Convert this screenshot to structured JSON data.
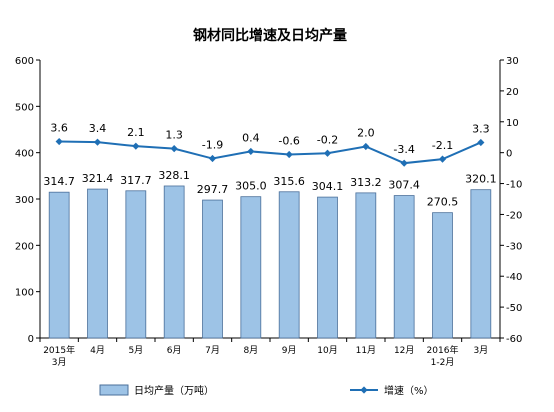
{
  "chart_data": {
    "type": "bar",
    "title": "钢材同比增速及日均产量",
    "categories": [
      [
        "2015年",
        "3月"
      ],
      [
        "4月"
      ],
      [
        "5月"
      ],
      [
        "6月"
      ],
      [
        "7月"
      ],
      [
        "8月"
      ],
      [
        "9月"
      ],
      [
        "10月"
      ],
      [
        "11月"
      ],
      [
        "12月"
      ],
      [
        "2016年",
        "1-2月"
      ],
      [
        "3月"
      ]
    ],
    "y_left": {
      "min": 0,
      "max": 600,
      "step": 100
    },
    "y_right": {
      "min": -60,
      "max": 30,
      "step": 10
    },
    "series": [
      {
        "name": "日均产量（万吨）",
        "type": "bar",
        "axis": "left",
        "values": [
          314.7,
          321.4,
          317.7,
          328.1,
          297.7,
          305.0,
          315.6,
          304.1,
          313.2,
          307.4,
          270.5,
          320.1
        ],
        "labels": [
          "314.7",
          "321.4",
          "317.7",
          "328.1",
          "297.7",
          "305.0",
          "315.6",
          "304.1",
          "313.2",
          "307.4",
          "270.5",
          "320.1"
        ]
      },
      {
        "name": "增速（%）",
        "type": "line",
        "axis": "right",
        "values": [
          3.6,
          3.4,
          2.1,
          1.3,
          -1.9,
          0.4,
          -0.6,
          -0.2,
          2.0,
          -3.4,
          -2.1,
          3.3
        ],
        "labels": [
          "3.6",
          "3.4",
          "2.1",
          "1.3",
          "-1.9",
          "0.4",
          "-0.6",
          "-0.2",
          "2.0",
          "-3.4",
          "-2.1",
          "3.3"
        ]
      }
    ],
    "legend": {
      "placement": "bottom"
    },
    "grid": false,
    "colors": {
      "bar_fill": "#9dc3e6",
      "bar_stroke": "#4a6f9a",
      "line": "#1f6fb5",
      "axis": "#000000"
    }
  }
}
